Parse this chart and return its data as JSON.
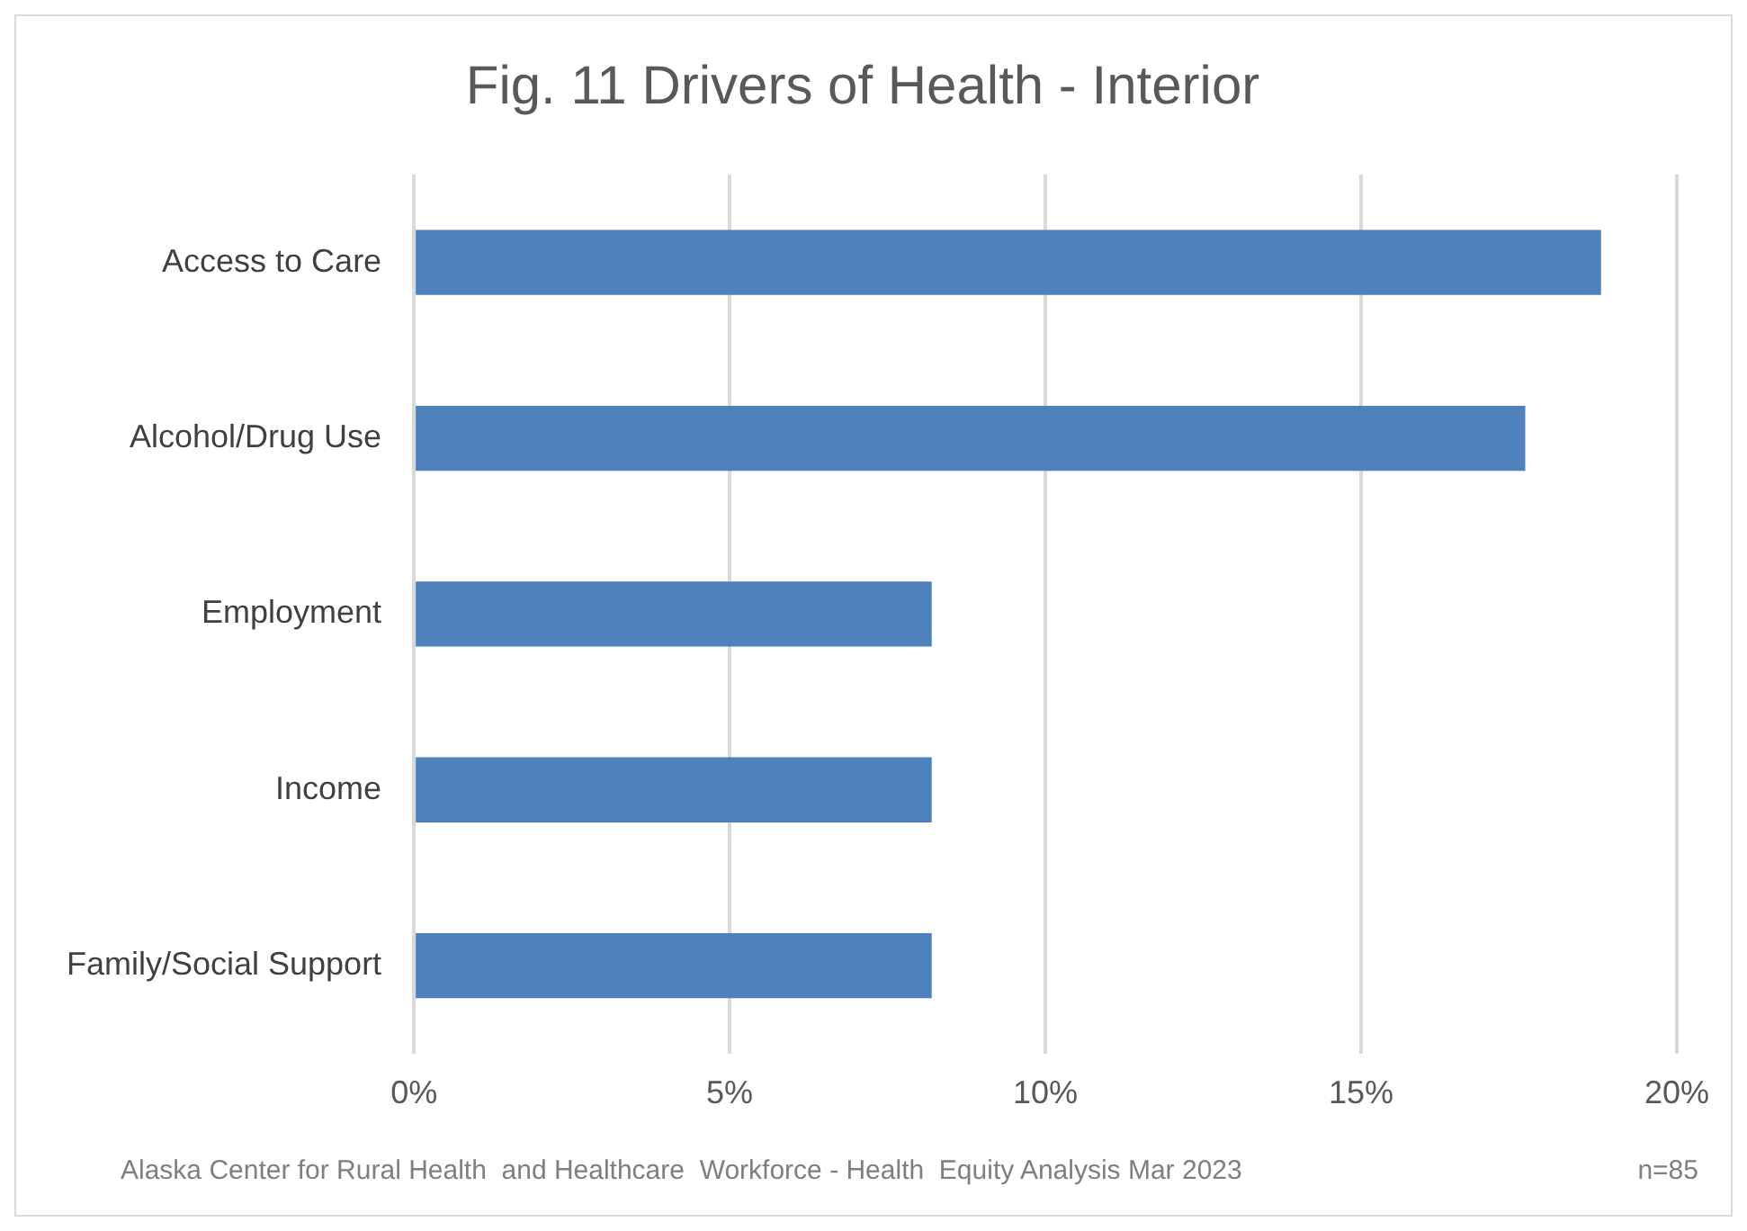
{
  "chart_data": {
    "type": "bar",
    "orientation": "horizontal",
    "title": "Fig. 11 Drivers of Health - Interior",
    "categories": [
      "Access to Care",
      "Alcohol/Drug Use",
      "Employment",
      "Income",
      "Family/Social Support"
    ],
    "values": [
      18.8,
      17.6,
      8.2,
      8.2,
      8.2
    ],
    "color": "#4f81bd",
    "xlim": [
      0,
      20
    ],
    "xticks": [
      {
        "value": 0,
        "label": "0%"
      },
      {
        "value": 5,
        "label": "5%"
      },
      {
        "value": 10,
        "label": "10%"
      },
      {
        "value": 15,
        "label": "15%"
      },
      {
        "value": 20,
        "label": "20%"
      }
    ],
    "grid": "x",
    "legend": false,
    "annotations": [
      "Alaska Center for Rural Health  and Healthcare  Workforce - Health  Equity Analysis Mar 2023",
      "n=85"
    ]
  }
}
